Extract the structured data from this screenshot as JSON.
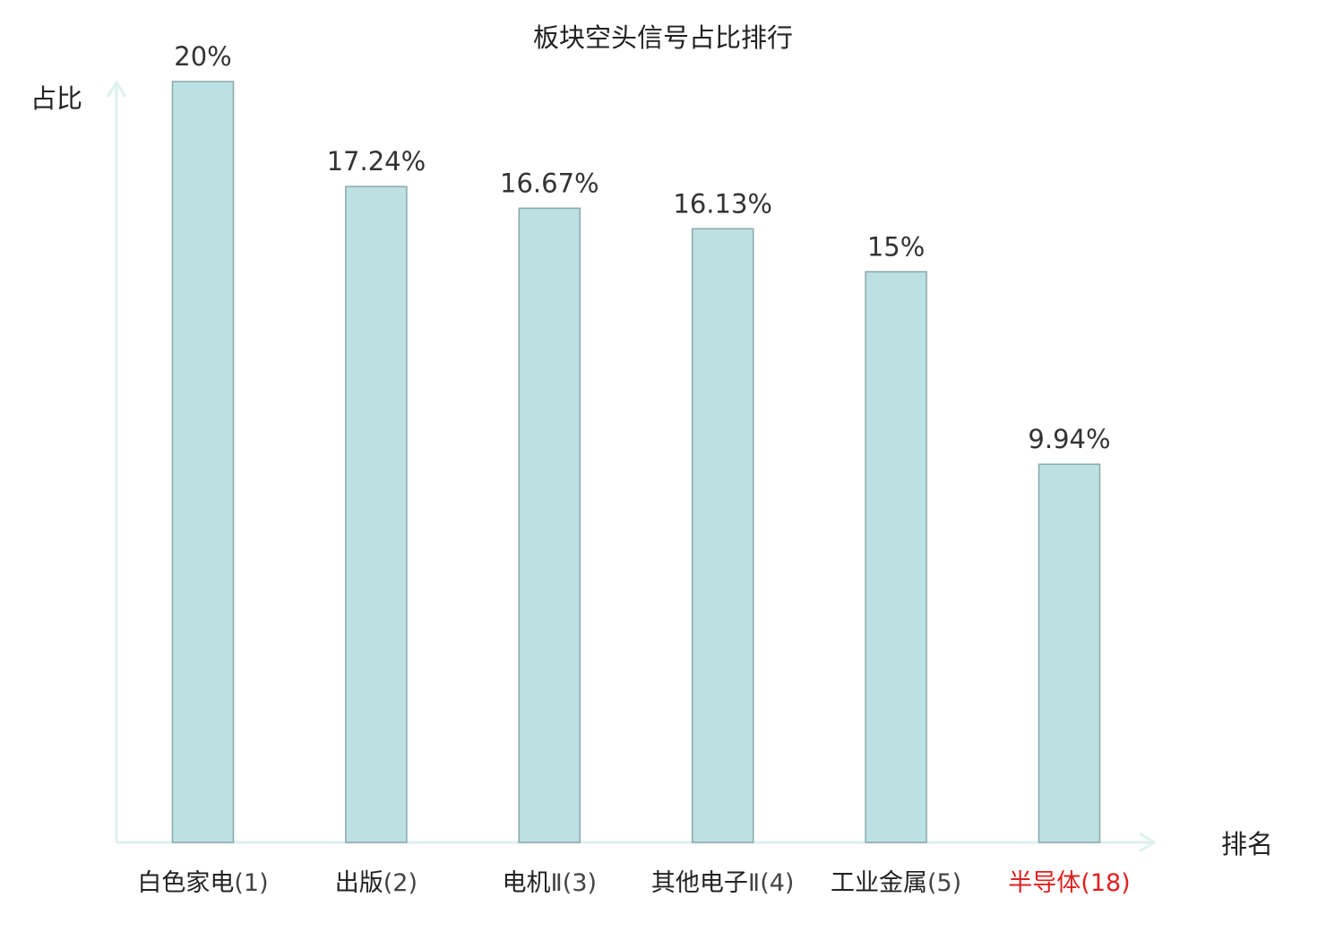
{
  "colors": {
    "bar_fill": "#bde0e3",
    "bar_stroke": "#8aa7aa",
    "axis": "#ddf1ef",
    "text": "#222222",
    "num_text": "#444444",
    "highlight": "#e02020"
  },
  "chart_data": {
    "type": "bar",
    "title": "板块空头信号占比排行",
    "ylabel": "占比",
    "xlabel": "排名",
    "ylim": [
      0,
      20
    ],
    "grid": false,
    "legend": "none",
    "categories": [
      {
        "lines": [
          {
            "cjk": "白色家电",
            "num": "(1)"
          }
        ],
        "highlight": false
      },
      {
        "lines": [
          {
            "cjk": "出版",
            "num": "(2)"
          }
        ],
        "highlight": false
      },
      {
        "lines": [
          {
            "cjk": "电机",
            "num": "Ⅱ(3)"
          }
        ],
        "highlight": false
      },
      {
        "lines": [
          {
            "cjk": "其他电子",
            "num": ""
          },
          {
            "cjk": "",
            "num": "Ⅱ(4)"
          }
        ],
        "highlight": false
      },
      {
        "lines": [
          {
            "cjk": "工业金属",
            "num": "(5)"
          }
        ],
        "highlight": false
      },
      {
        "lines": [
          {
            "cjk": "半导体",
            "num": "(18)"
          }
        ],
        "highlight": true
      }
    ],
    "values": [
      20,
      17.24,
      16.67,
      16.13,
      15,
      9.94
    ],
    "value_labels": [
      "20%",
      "17.24%",
      "16.67%",
      "16.13%",
      "15%",
      "9.94%"
    ]
  }
}
